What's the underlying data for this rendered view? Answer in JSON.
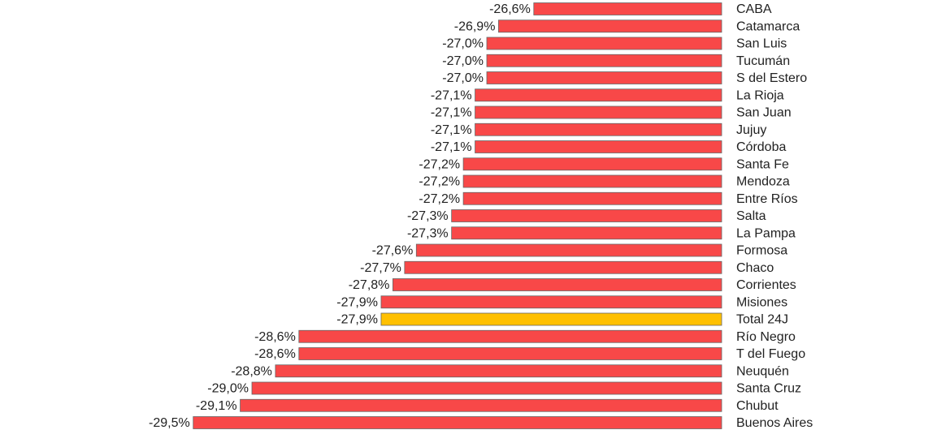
{
  "chart_data": {
    "type": "hbar",
    "categories": [
      "CABA",
      "Catamarca",
      "San Luis",
      "Tucumán",
      "S del Estero",
      "La Rioja",
      "San Juan",
      "Jujuy",
      "Córdoba",
      "Santa Fe",
      "Mendoza",
      "Entre Ríos",
      "Salta",
      "La Pampa",
      "Formosa",
      "Chaco",
      "Corrientes",
      "Misiones",
      "Total 24J",
      "Río Negro",
      "T del Fuego",
      "Neuquén",
      "Santa Cruz",
      "Chubut",
      "Buenos Aires"
    ],
    "values": [
      -26.6,
      -26.9,
      -27.0,
      -27.0,
      -27.0,
      -27.1,
      -27.1,
      -27.1,
      -27.1,
      -27.2,
      -27.2,
      -27.2,
      -27.3,
      -27.3,
      -27.6,
      -27.7,
      -27.8,
      -27.9,
      -27.9,
      -28.6,
      -28.6,
      -28.8,
      -29.0,
      -29.1,
      -29.5
    ],
    "value_labels": [
      "-26,6%",
      "-26,9%",
      "-27,0%",
      "-27,0%",
      "-27,0%",
      "-27,1%",
      "-27,1%",
      "-27,1%",
      "-27,1%",
      "-27,2%",
      "-27,2%",
      "-27,2%",
      "-27,3%",
      "-27,3%",
      "-27,6%",
      "-27,7%",
      "-27,8%",
      "-27,9%",
      "-27,9%",
      "-28,6%",
      "-28,6%",
      "-28,8%",
      "-29,0%",
      "-29,1%",
      "-29,5%"
    ],
    "colors": [
      "#f84848",
      "#f84848",
      "#f84848",
      "#f84848",
      "#f84848",
      "#f84848",
      "#f84848",
      "#f84848",
      "#f84848",
      "#f84848",
      "#f84848",
      "#f84848",
      "#f84848",
      "#f84848",
      "#f84848",
      "#f84848",
      "#f84848",
      "#f84848",
      "#ffc000",
      "#f84848",
      "#f84848",
      "#f84848",
      "#f84848",
      "#f84848",
      "#f84848"
    ],
    "xlim": [
      -30,
      -25
    ]
  }
}
